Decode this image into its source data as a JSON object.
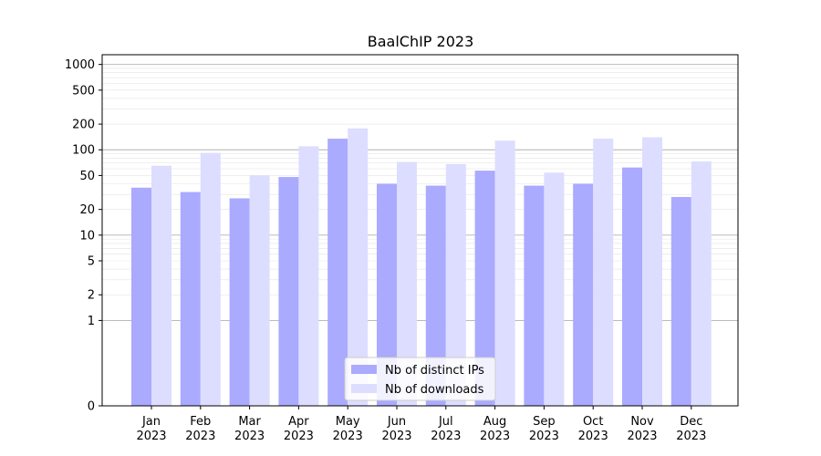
{
  "chart_data": {
    "type": "bar",
    "title": "BaalChIP 2023",
    "xlabel": "",
    "ylabel": "",
    "y_scale": "symlog",
    "ylim": [
      0,
      1300
    ],
    "y_ticks": [
      0,
      1,
      2,
      5,
      10,
      20,
      50,
      100,
      200,
      500,
      1000
    ],
    "grid": true,
    "legend_position": "bottom-center",
    "categories": [
      {
        "month": "Jan",
        "year": "2023"
      },
      {
        "month": "Feb",
        "year": "2023"
      },
      {
        "month": "Mar",
        "year": "2023"
      },
      {
        "month": "Apr",
        "year": "2023"
      },
      {
        "month": "May",
        "year": "2023"
      },
      {
        "month": "Jun",
        "year": "2023"
      },
      {
        "month": "Jul",
        "year": "2023"
      },
      {
        "month": "Aug",
        "year": "2023"
      },
      {
        "month": "Sep",
        "year": "2023"
      },
      {
        "month": "Oct",
        "year": "2023"
      },
      {
        "month": "Nov",
        "year": "2023"
      },
      {
        "month": "Dec",
        "year": "2023"
      }
    ],
    "series": [
      {
        "name": "Nb of distinct IPs",
        "color": "#aaaaff",
        "values": [
          36,
          32,
          27,
          48,
          135,
          40,
          38,
          57,
          38,
          40,
          62,
          28
        ]
      },
      {
        "name": "Nb of downloads",
        "color": "#ddddff",
        "values": [
          65,
          92,
          50,
          110,
          178,
          72,
          68,
          128,
          54,
          135,
          140,
          73
        ]
      }
    ]
  }
}
